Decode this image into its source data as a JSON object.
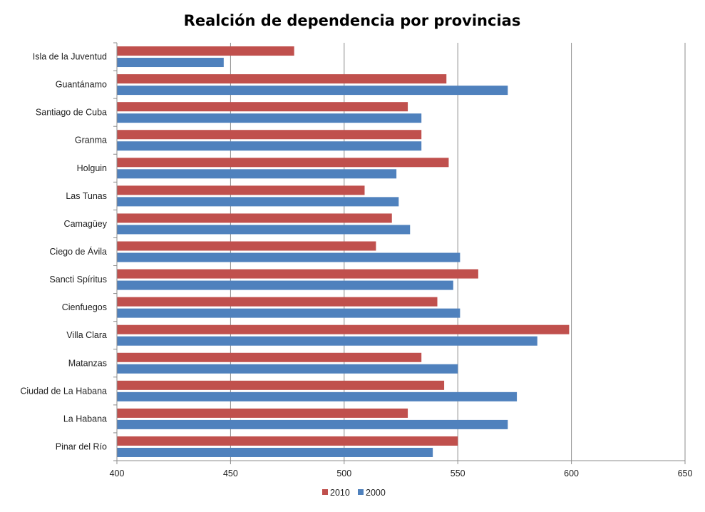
{
  "chart_data": {
    "type": "bar",
    "orientation": "horizontal",
    "title": "Realción de dependencia por provincias",
    "xlabel": "",
    "ylabel": "",
    "xlim": [
      400,
      650
    ],
    "xticks": [
      400,
      450,
      500,
      550,
      600,
      650
    ],
    "grid": true,
    "legend": "bottom",
    "categories": [
      "Isla de la Juventud",
      "Guantánamo",
      "Santiago de Cuba",
      "Granma",
      "Holguin",
      "Las Tunas",
      "Camagüey",
      "Ciego de Ávila",
      "Sancti Spíritus",
      "Cienfuegos",
      "Villa Clara",
      "Matanzas",
      "Ciudad de La Habana",
      "La Habana",
      "Pinar del Río"
    ],
    "series": [
      {
        "name": "2010",
        "color": "#C0504D",
        "values": [
          478,
          545,
          528,
          534,
          546,
          509,
          521,
          514,
          559,
          541,
          599,
          534,
          544,
          528,
          550
        ]
      },
      {
        "name": "2000",
        "color": "#4F81BD",
        "values": [
          447,
          572,
          534,
          534,
          523,
          524,
          529,
          551,
          548,
          551,
          585,
          550,
          576,
          572,
          539
        ]
      }
    ]
  },
  "colors": {
    "grid": "#8C8C8C",
    "axis": "#8C8C8C"
  }
}
